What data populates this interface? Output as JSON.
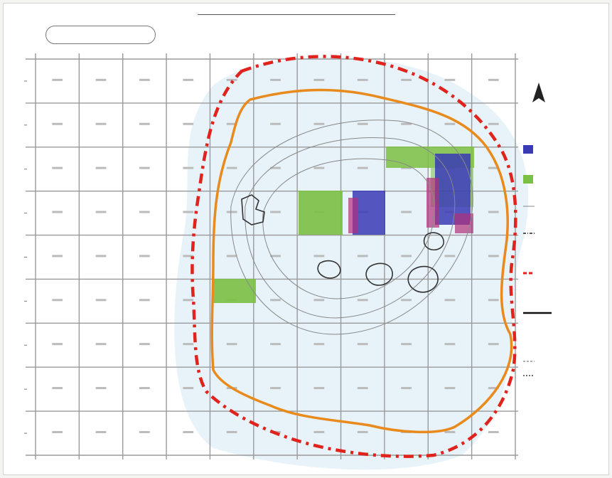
{
  "map": {
    "title": "",
    "scale_box": {
      "line1": "",
      "line2": ""
    },
    "grid": {
      "columns": 11,
      "rows": 9,
      "column_labels": [],
      "row_labels": [],
      "cell_labels": []
    },
    "colors": {
      "grid_line": "#9a9a9a",
      "boundary_outer_red": "#e0231c",
      "boundary_inner_orange": "#e98a1c",
      "green_zone": "#7bc043",
      "blue_zone": "#2f2fa8",
      "magenta_zone": "#b0307a",
      "light_blue_halo": "#cfe6f3"
    },
    "north_arrow": {
      "icon": "north-arrow-icon"
    },
    "legend": {
      "title": "",
      "items": [
        {
          "icon": "blue-square-swatch",
          "label": ""
        },
        {
          "icon": "green-square-swatch",
          "label": ""
        },
        {
          "icon": "thin-line-swatch",
          "label": ""
        },
        {
          "icon": "dash-dot-line-swatch",
          "label": ""
        },
        {
          "icon": "red-dash-line-swatch",
          "label": ""
        },
        {
          "icon": "black-line-swatch",
          "label": ""
        },
        {
          "icon": "thin-dash-swatch",
          "label": ""
        },
        {
          "icon": "short-dash-swatch",
          "label": ""
        },
        {
          "icon": "note-text",
          "label": ""
        }
      ]
    }
  }
}
